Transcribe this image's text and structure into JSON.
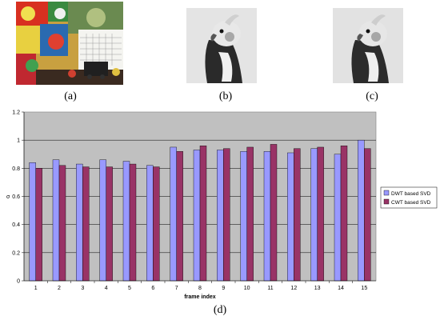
{
  "panels": {
    "a": "(a)",
    "b": "(b)",
    "c": "(c)",
    "d": "(d)"
  },
  "colors": {
    "plot_bg": "#c0c0c0",
    "dwt": "#9999ff",
    "cwt": "#993366"
  },
  "chart_data": {
    "type": "bar",
    "xlabel": "frame index",
    "ylabel": "σ",
    "ylim": [
      0,
      1.2
    ],
    "yticks": [
      "0",
      "0.2",
      "0.4",
      "0.6",
      "0.8",
      "1",
      "1.2"
    ],
    "grid": true,
    "legend_position": "right",
    "categories": [
      "1",
      "2",
      "3",
      "4",
      "5",
      "6",
      "7",
      "8",
      "9",
      "10",
      "11",
      "12",
      "13",
      "14",
      "15"
    ],
    "series": [
      {
        "name": "DWT based SVD",
        "values": [
          0.84,
          0.86,
          0.83,
          0.86,
          0.85,
          0.82,
          0.95,
          0.93,
          0.93,
          0.92,
          0.92,
          0.91,
          0.94,
          0.9,
          1.0
        ]
      },
      {
        "name": "CWT based SVD",
        "values": [
          0.8,
          0.82,
          0.81,
          0.81,
          0.83,
          0.81,
          0.92,
          0.96,
          0.94,
          0.95,
          0.97,
          0.94,
          0.95,
          0.96,
          0.94
        ]
      }
    ]
  }
}
